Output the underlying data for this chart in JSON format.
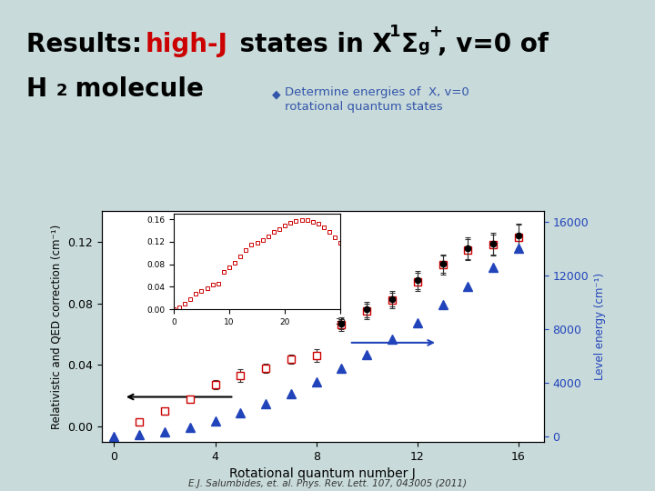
{
  "bg_color": "#c8dada",
  "bullet_color": "#3355aa",
  "ylabel_left": "Relativistic and QED correction (cm⁻¹)",
  "ylabel_right": "Level energy (cm⁻¹)",
  "xlabel": "Rotational quantum number J",
  "citation": "E.J. Salumbides, et. al. Phys. Rev. Lett. 107, 043005 (2011)",
  "J_red": [
    1,
    2,
    3,
    4,
    5,
    6,
    7,
    8,
    9,
    10,
    11,
    12,
    13,
    14,
    15,
    16
  ],
  "corr_red": [
    0.003,
    0.01,
    0.018,
    0.027,
    0.033,
    0.038,
    0.044,
    0.046,
    0.066,
    0.075,
    0.082,
    0.094,
    0.105,
    0.115,
    0.118,
    0.123
  ],
  "corr_red_err": [
    0.002,
    0.002,
    0.002,
    0.003,
    0.004,
    0.003,
    0.003,
    0.004,
    0.004,
    0.005,
    0.005,
    0.006,
    0.006,
    0.007,
    0.007,
    0.008
  ],
  "J_black": [
    9,
    10,
    11,
    12,
    13,
    14,
    15,
    16
  ],
  "corr_black": [
    0.067,
    0.076,
    0.083,
    0.095,
    0.106,
    0.116,
    0.119,
    0.124
  ],
  "corr_black_err": [
    0.004,
    0.005,
    0.005,
    0.006,
    0.006,
    0.007,
    0.007,
    0.008
  ],
  "J_blue": [
    0,
    1,
    2,
    3,
    4,
    5,
    6,
    7,
    8,
    9,
    10,
    11,
    12,
    13,
    14,
    15,
    16
  ],
  "energy_blue_right": [
    0,
    120,
    360,
    710,
    1170,
    1740,
    2420,
    3200,
    4080,
    5060,
    6130,
    7280,
    8510,
    9810,
    11170,
    12580,
    14050
  ],
  "inset_J": [
    0,
    1,
    2,
    3,
    4,
    5,
    6,
    7,
    8,
    9,
    10,
    11,
    12,
    13,
    14,
    15,
    16,
    17,
    18,
    19,
    20,
    21,
    22,
    23,
    24,
    25,
    26,
    27,
    28,
    29,
    30
  ],
  "inset_corr": [
    0,
    0.003,
    0.01,
    0.018,
    0.027,
    0.033,
    0.038,
    0.044,
    0.046,
    0.066,
    0.075,
    0.082,
    0.094,
    0.105,
    0.115,
    0.118,
    0.123,
    0.13,
    0.137,
    0.143,
    0.149,
    0.154,
    0.157,
    0.158,
    0.158,
    0.156,
    0.152,
    0.146,
    0.138,
    0.128,
    0.118
  ],
  "plot_bg": "#ffffff",
  "red_color": "#cc0000",
  "blue_color": "#2244bb",
  "left_ylim": [
    -0.01,
    0.14
  ],
  "right_ylim": [
    -400,
    16800
  ],
  "xlim": [
    -0.5,
    17
  ],
  "left_yticks": [
    0,
    0.04,
    0.08,
    0.12
  ],
  "right_yticks": [
    0,
    4000,
    8000,
    12000,
    16000
  ],
  "xticks": [
    0,
    4,
    8,
    12,
    16
  ]
}
